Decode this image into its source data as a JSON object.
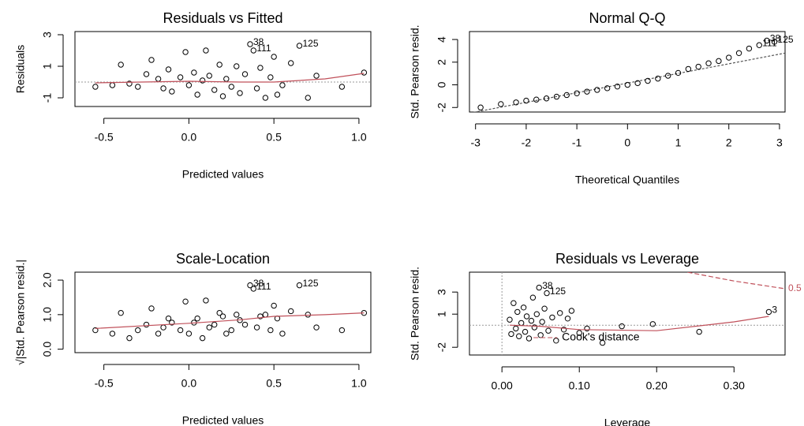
{
  "chart_data": [
    {
      "type": "scatter",
      "title": "Residuals vs Fitted",
      "x_label": "Predicted values",
      "y_label": "Residuals",
      "x": [
        -0.55,
        -0.45,
        -0.4,
        -0.35,
        -0.3,
        -0.25,
        -0.22,
        -0.18,
        -0.15,
        -0.12,
        -0.1,
        -0.05,
        -0.02,
        0.0,
        0.03,
        0.05,
        0.08,
        0.1,
        0.12,
        0.15,
        0.18,
        0.2,
        0.22,
        0.25,
        0.28,
        0.3,
        0.33,
        0.36,
        0.38,
        0.4,
        0.42,
        0.45,
        0.48,
        0.5,
        0.52,
        0.55,
        0.6,
        0.65,
        0.7,
        0.75,
        0.9,
        1.03
      ],
      "y": [
        -0.3,
        -0.2,
        1.1,
        -0.1,
        -0.3,
        0.5,
        1.4,
        0.2,
        -0.4,
        0.8,
        -0.6,
        0.3,
        1.9,
        -0.2,
        0.6,
        -0.8,
        0.1,
        2.0,
        0.4,
        -0.5,
        1.1,
        -0.9,
        0.2,
        -0.3,
        1.0,
        -0.7,
        0.5,
        2.4,
        2.0,
        -0.4,
        0.9,
        -1.0,
        0.3,
        1.6,
        -0.8,
        -0.2,
        1.2,
        2.3,
        -1.0,
        0.4,
        -0.3,
        0.6
      ],
      "xlim": [
        -0.67,
        1.07
      ],
      "ylim": [
        -1.55,
        3.2
      ],
      "xticks": [
        -0.5,
        {
          "value": 0,
          "label": "0.0"
        },
        0.5,
        {
          "value": 1,
          "label": "1.0"
        }
      ],
      "yticks": [
        -1,
        1,
        3
      ],
      "hline": 0,
      "smooth": {
        "x": [
          -0.55,
          0,
          0.3,
          0.5,
          0.8,
          1.03
        ],
        "y": [
          -0.05,
          0.05,
          0.0,
          0.0,
          0.2,
          0.55
        ],
        "color": "#c0505a"
      },
      "annotations": [
        {
          "text": "38",
          "x": 0.36,
          "y": 2.4
        },
        {
          "text": "111",
          "x": 0.38,
          "y": 2.0
        },
        {
          "text": "125",
          "x": 0.65,
          "y": 2.3
        }
      ]
    },
    {
      "type": "scatter",
      "title": "Normal Q-Q",
      "x_label": "Theoretical Quantiles",
      "y_label": "Std. Pearson resid.",
      "x": [
        -2.9,
        -2.5,
        -2.2,
        -2.0,
        -1.8,
        -1.6,
        -1.4,
        -1.2,
        -1.0,
        -0.8,
        -0.6,
        -0.4,
        -0.2,
        0.0,
        0.2,
        0.4,
        0.6,
        0.8,
        1.0,
        1.2,
        1.4,
        1.6,
        1.8,
        2.0,
        2.2,
        2.4,
        2.6,
        2.75,
        2.9
      ],
      "y": [
        -2.0,
        -1.7,
        -1.55,
        -1.4,
        -1.3,
        -1.2,
        -1.05,
        -0.9,
        -0.75,
        -0.6,
        -0.45,
        -0.3,
        -0.15,
        0.0,
        0.15,
        0.35,
        0.55,
        0.8,
        1.05,
        1.4,
        1.6,
        1.9,
        2.1,
        2.4,
        2.8,
        3.2,
        3.5,
        3.9,
        3.8
      ],
      "xlim": [
        -3.12,
        3.11
      ],
      "ylim": [
        -2.4,
        4.7
      ],
      "xticks": [
        -3,
        -2,
        -1,
        0,
        1,
        2,
        3
      ],
      "yticks": [
        -2,
        0,
        2,
        4
      ],
      "refline": {
        "x": [
          -3.12,
          3.11
        ],
        "y": [
          -2.5,
          2.8
        ],
        "color": "#555555"
      },
      "annotations": [
        {
          "text": "38",
          "x": 2.75,
          "y": 3.9
        },
        {
          "text": "111",
          "x": 2.6,
          "y": 3.5
        },
        {
          "text": "125",
          "x": 2.9,
          "y": 3.8
        }
      ]
    },
    {
      "type": "scatter",
      "title": "Scale-Location",
      "x_label": "Predicted values",
      "y_label": "√|Std. Pearson resid.|",
      "x": [
        -0.55,
        -0.45,
        -0.4,
        -0.35,
        -0.3,
        -0.25,
        -0.22,
        -0.18,
        -0.15,
        -0.12,
        -0.1,
        -0.05,
        -0.02,
        0.0,
        0.03,
        0.05,
        0.08,
        0.1,
        0.12,
        0.15,
        0.18,
        0.2,
        0.22,
        0.25,
        0.28,
        0.3,
        0.33,
        0.36,
        0.38,
        0.4,
        0.42,
        0.45,
        0.48,
        0.5,
        0.52,
        0.55,
        0.6,
        0.65,
        0.7,
        0.75,
        0.9,
        1.03
      ],
      "y": [
        0.55,
        0.45,
        1.05,
        0.32,
        0.55,
        0.71,
        1.18,
        0.45,
        0.63,
        0.89,
        0.77,
        0.55,
        1.38,
        0.45,
        0.77,
        0.89,
        0.32,
        1.41,
        0.63,
        0.71,
        1.05,
        0.95,
        0.45,
        0.55,
        1.0,
        0.84,
        0.71,
        1.85,
        1.75,
        0.63,
        0.95,
        1.0,
        0.55,
        1.26,
        0.89,
        0.45,
        1.1,
        1.85,
        1.0,
        0.63,
        0.55,
        1.05
      ],
      "xlim": [
        -0.67,
        1.07
      ],
      "ylim": [
        -0.1,
        2.23
      ],
      "xticks": [
        -0.5,
        {
          "value": 0,
          "label": "0.0"
        },
        0.5,
        {
          "value": 1,
          "label": "1.0"
        }
      ],
      "yticks": [
        {
          "value": 0,
          "label": "0.0"
        },
        {
          "value": 1,
          "label": "1.0"
        },
        {
          "value": 2,
          "label": "2.0"
        }
      ],
      "smooth": {
        "x": [
          -0.55,
          0,
          0.3,
          0.5,
          0.8,
          1.03
        ],
        "y": [
          0.6,
          0.75,
          0.85,
          0.95,
          1.0,
          1.05
        ],
        "color": "#c0505a"
      },
      "annotations": [
        {
          "text": "38",
          "x": 0.36,
          "y": 1.85
        },
        {
          "text": "111",
          "x": 0.38,
          "y": 1.75
        },
        {
          "text": "125",
          "x": 0.65,
          "y": 1.85
        }
      ]
    },
    {
      "type": "scatter",
      "title": "Residuals vs Leverage",
      "x_label": "Leverage",
      "y_label": "Std. Pearson resid.",
      "x": [
        0.01,
        0.012,
        0.015,
        0.018,
        0.02,
        0.022,
        0.025,
        0.028,
        0.03,
        0.032,
        0.035,
        0.038,
        0.04,
        0.042,
        0.045,
        0.048,
        0.05,
        0.052,
        0.055,
        0.058,
        0.06,
        0.065,
        0.07,
        0.075,
        0.08,
        0.085,
        0.09,
        0.1,
        0.11,
        0.13,
        0.155,
        0.195,
        0.255,
        0.345
      ],
      "y": [
        0.5,
        -0.8,
        2.0,
        -0.3,
        1.2,
        -1.0,
        0.2,
        1.6,
        -0.6,
        0.8,
        -1.2,
        0.4,
        2.5,
        -0.2,
        1.0,
        3.4,
        -0.9,
        0.3,
        1.5,
        2.9,
        -0.5,
        0.7,
        -1.4,
        1.1,
        -0.4,
        0.6,
        1.3,
        -0.7,
        -0.3,
        -1.6,
        -0.1,
        0.1,
        -0.6,
        1.2
      ],
      "xlim": [
        -0.042,
        0.366
      ],
      "ylim": [
        -2.7,
        4.8
      ],
      "xticks": [
        {
          "value": 0,
          "label": "0.00"
        },
        {
          "value": 0.1,
          "label": "0.10"
        },
        {
          "value": 0.2,
          "label": "0.20"
        },
        {
          "value": 0.3,
          "label": "0.30"
        }
      ],
      "yticks": [
        -2,
        1,
        3
      ],
      "hline": 0,
      "vline": 0,
      "smooth": {
        "x": [
          0.01,
          0.05,
          0.1,
          0.2,
          0.3,
          0.345
        ],
        "y": [
          0.0,
          -0.1,
          -0.4,
          -0.5,
          0.3,
          0.8
        ],
        "color": "#c0505a"
      },
      "cook": {
        "x": [
          0.24,
          0.3,
          0.366
        ],
        "y": [
          4.8,
          4.0,
          3.3
        ],
        "label": "0.5",
        "color": "#c0505a",
        "legend": "Cook's distance"
      },
      "annotations": [
        {
          "text": "38",
          "x": 0.048,
          "y": 3.4
        },
        {
          "text": "125",
          "x": 0.058,
          "y": 2.9
        },
        {
          "text": "3",
          "x": 0.345,
          "y": 1.2
        }
      ]
    }
  ]
}
